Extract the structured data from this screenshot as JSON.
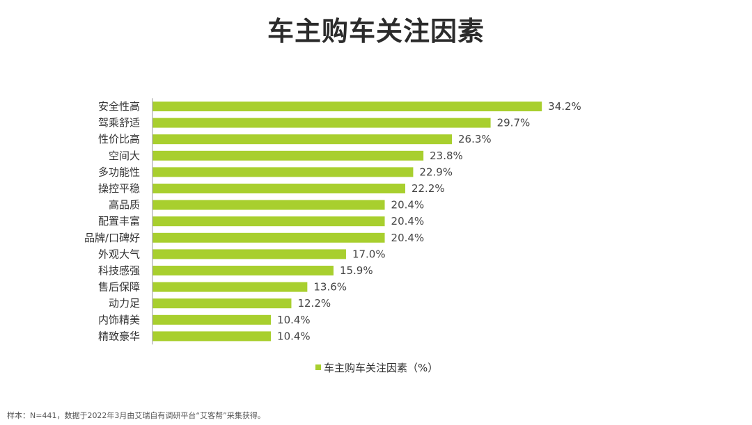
{
  "title": "车主购车关注因素",
  "footnote": "样本：N=441，数据于2022年3月由艾瑞自有调研平台“艾客帮”采集获得。",
  "colors": {
    "bar": "#a8cf2e",
    "axis": "#999999"
  },
  "chart_data": {
    "type": "bar",
    "orientation": "horizontal",
    "categories": [
      "安全性高",
      "驾乘舒适",
      "性价比高",
      "空间大",
      "多功能性",
      "操控平稳",
      "高品质",
      "配置丰富",
      "品牌/口碑好",
      "外观大气",
      "科技感强",
      "售后保障",
      "动力足",
      "内饰精美",
      "精致豪华"
    ],
    "values": [
      34.2,
      29.7,
      26.3,
      23.8,
      22.9,
      22.2,
      20.4,
      20.4,
      20.4,
      17.0,
      15.9,
      13.6,
      12.2,
      10.4,
      10.4
    ],
    "value_labels": [
      "34.2%",
      "29.7%",
      "26.3%",
      "23.8%",
      "22.9%",
      "22.2%",
      "20.4%",
      "20.4%",
      "20.4%",
      "17.0%",
      "15.9%",
      "13.6%",
      "12.2%",
      "10.4%",
      "10.4%"
    ],
    "series": [
      {
        "name": "车主购车关注因素（%）"
      }
    ],
    "legend": "bottom",
    "grid": false
  }
}
